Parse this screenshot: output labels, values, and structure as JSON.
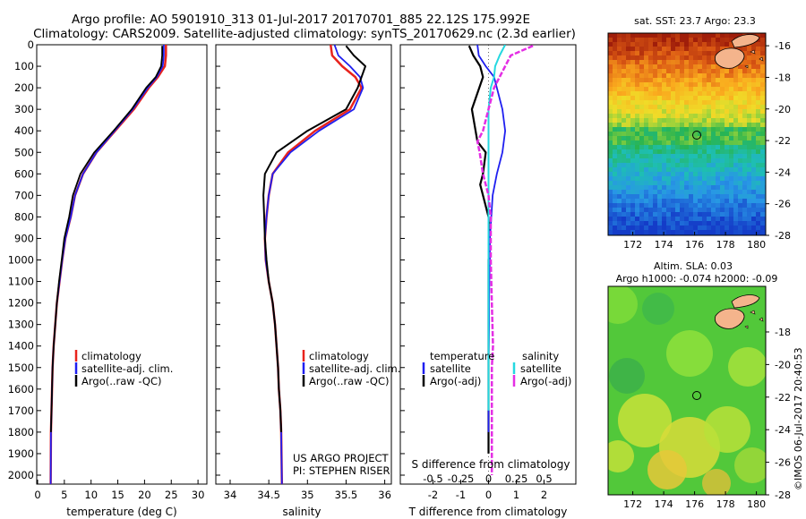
{
  "title": {
    "line1": "Argo profile: AO 5901910_313 01-Jul-2017 20170701_885 22.12S 175.992E",
    "line2": "Climatology: CARS2009. Satellite-adjusted climatology: synTS_20170629.nc (2.3d earlier)"
  },
  "depth_ticks": [
    "0",
    "100",
    "200",
    "300",
    "400",
    "500",
    "600",
    "700",
    "800",
    "900",
    "1000",
    "1100",
    "1200",
    "1300",
    "1400",
    "1500",
    "1600",
    "1700",
    "1800",
    "1900",
    "2000"
  ],
  "temperature_panel": {
    "xlabel": "temperature (deg C)",
    "xticks": [
      "0",
      "5",
      "10",
      "15",
      "20",
      "25",
      "30"
    ],
    "legend": [
      "climatology",
      "satellite-adj. clim.",
      "Argo(..raw -QC)"
    ]
  },
  "salinity_panel": {
    "xlabel": "salinity",
    "xticks": [
      "34",
      "34.5",
      "35",
      "35.5",
      "36"
    ],
    "legend": [
      "climatology",
      "satellite-adj. clim.",
      "Argo(..raw -QC)"
    ],
    "credit1": "US ARGO PROJECT",
    "credit2": "PI: STEPHEN RISER"
  },
  "difference_panel": {
    "xlabel_bottom": "T difference from climatology",
    "xlabel_top": "S difference from climatology",
    "xticks_bottom": [
      "-2",
      "-1",
      "0",
      "1",
      "2"
    ],
    "xticks_top": [
      "-0.5",
      "-0.25",
      "0",
      "0.25",
      "0.5"
    ],
    "legend_left_title": "temperature",
    "legend_right_title": "salinity",
    "legend_left": [
      "satellite",
      "Argo(-adj)"
    ],
    "legend_right": [
      "satellite",
      "Argo(-adj)"
    ]
  },
  "sst_map": {
    "title": "sat. SST: 23.7  Argo: 23.3",
    "yticks": [
      "-16",
      "-18",
      "-20",
      "-22",
      "-24",
      "-26",
      "-28"
    ],
    "xticks": [
      "172",
      "174",
      "176",
      "178",
      "180"
    ]
  },
  "sla_map": {
    "title1": "Altim. SLA: 0.03",
    "title2": "Argo h1000: -0.074  h2000: -0.09",
    "yticks": [
      "-18",
      "-20",
      "-22",
      "-24",
      "-26",
      "-28"
    ],
    "xticks": [
      "172",
      "174",
      "176",
      "178",
      "180"
    ]
  },
  "stamp": "©IMOS 06-Jul-2017 20:40:53",
  "colors": {
    "climatology": "#e8231d",
    "satellite_adj": "#1f1ff0",
    "argo": "#000000",
    "salinity_sat": "#25d8e0",
    "salinity_argo": "#e42ee4",
    "land": "#f4b48c"
  },
  "chart_data": [
    {
      "type": "line",
      "title": "",
      "xlabel": "temperature (deg C)",
      "ylabel": "",
      "xlim": [
        -2,
        32
      ],
      "ylim": [
        2060,
        0
      ],
      "y_inverted": true,
      "series": [
        {
          "name": "climatology",
          "x": [
            24.0,
            24.0,
            23.8,
            22.5,
            20.8,
            18.0,
            14.5,
            11.0,
            8.5,
            7.0,
            6.2,
            5.2,
            4.6,
            4.1,
            3.6,
            3.3,
            3.0,
            2.8,
            2.7,
            2.6,
            2.5,
            2.45
          ],
          "y": [
            0,
            50,
            100,
            150,
            200,
            300,
            400,
            500,
            600,
            700,
            800,
            900,
            1000,
            1100,
            1200,
            1300,
            1400,
            1500,
            1600,
            1700,
            1800,
            2050
          ]
        },
        {
          "name": "satellite-adj. clim.",
          "x": [
            23.6,
            23.6,
            23.4,
            22.3,
            20.6,
            17.8,
            14.4,
            11.0,
            8.5,
            7.0,
            6.2,
            5.2,
            4.6,
            4.1,
            3.6,
            3.3,
            3.0,
            2.8,
            2.7,
            2.6,
            2.5,
            2.45
          ],
          "y": [
            0,
            50,
            100,
            150,
            200,
            300,
            400,
            500,
            600,
            700,
            800,
            900,
            1000,
            1100,
            1200,
            1300,
            1400,
            1500,
            1600,
            1700,
            1800,
            2050
          ]
        },
        {
          "name": "Argo(..raw -QC)",
          "x": [
            23.3,
            23.3,
            23.1,
            22.1,
            20.3,
            17.6,
            14.2,
            10.6,
            8.0,
            6.6,
            5.9,
            5.0,
            4.5,
            4.0,
            3.6,
            3.3,
            3.0,
            2.8,
            2.7,
            2.6,
            2.5
          ],
          "y": [
            5,
            50,
            100,
            150,
            200,
            300,
            400,
            500,
            600,
            700,
            800,
            900,
            1000,
            1100,
            1200,
            1300,
            1400,
            1500,
            1600,
            1700,
            1800
          ]
        }
      ]
    },
    {
      "type": "line",
      "title": "",
      "xlabel": "salinity",
      "ylabel": "",
      "xlim": [
        33.82,
        36.1
      ],
      "ylim": [
        2060,
        0
      ],
      "y_inverted": true,
      "series": [
        {
          "name": "climatology",
          "x": [
            35.3,
            35.32,
            35.45,
            35.62,
            35.7,
            35.55,
            35.1,
            34.75,
            34.55,
            34.5,
            34.47,
            34.45,
            34.46,
            34.5,
            34.55,
            34.58,
            34.6,
            34.62,
            34.63,
            34.65,
            34.66,
            34.67
          ],
          "y": [
            0,
            50,
            100,
            150,
            200,
            300,
            400,
            500,
            600,
            700,
            800,
            900,
            1000,
            1100,
            1200,
            1300,
            1400,
            1500,
            1600,
            1700,
            1800,
            2050
          ]
        },
        {
          "name": "satellite-adj. clim.",
          "x": [
            35.35,
            35.4,
            35.55,
            35.68,
            35.72,
            35.6,
            35.15,
            34.78,
            34.55,
            34.5,
            34.47,
            34.45,
            34.46,
            34.5,
            34.55,
            34.58,
            34.6,
            34.62,
            34.63,
            34.65,
            34.66,
            34.67
          ],
          "y": [
            0,
            50,
            100,
            150,
            200,
            300,
            400,
            500,
            600,
            700,
            800,
            900,
            1000,
            1100,
            1200,
            1300,
            1400,
            1500,
            1600,
            1700,
            1800,
            2050
          ]
        },
        {
          "name": "Argo(..raw -QC)",
          "x": [
            35.5,
            35.6,
            35.75,
            35.7,
            35.65,
            35.5,
            35.0,
            34.6,
            34.45,
            34.43,
            34.44,
            34.45,
            34.47,
            34.5,
            34.55,
            34.58,
            34.6,
            34.62,
            34.63,
            34.65,
            34.66
          ],
          "y": [
            5,
            50,
            100,
            150,
            200,
            300,
            400,
            500,
            600,
            700,
            800,
            900,
            1000,
            1100,
            1200,
            1300,
            1400,
            1500,
            1600,
            1700,
            1800
          ]
        }
      ]
    },
    {
      "type": "line",
      "title": "",
      "xlabel": "T difference from climatology",
      "ylabel": "",
      "xlim": [
        -2.5,
        2.5
      ],
      "ylim": [
        2060,
        0
      ],
      "y_inverted": true,
      "series": [
        {
          "name": "temperature satellite",
          "x": [
            -0.4,
            -0.35,
            -0.1,
            0.2,
            0.3,
            0.5,
            0.6,
            0.5,
            0.3,
            0.15,
            0.1,
            0.05,
            0.05,
            0.03,
            0.02,
            0.02,
            0.01,
            0.0,
            0.0,
            0.0,
            0.0
          ],
          "y": [
            0,
            50,
            100,
            150,
            200,
            300,
            400,
            500,
            600,
            700,
            800,
            900,
            1000,
            1100,
            1200,
            1300,
            1400,
            1500,
            1600,
            1700,
            1800
          ]
        },
        {
          "name": "temperature Argo(-adj)",
          "x": [
            -0.7,
            -0.55,
            -0.3,
            -0.2,
            -0.6,
            -0.4,
            -0.1,
            -0.2,
            -0.3,
            -0.2,
            0.0,
            0.05,
            0.0,
            0.0,
            0.0,
            0.0,
            0.0,
            0.0,
            0.0,
            0.0,
            0.0,
            0.0
          ],
          "y": [
            5,
            50,
            100,
            150,
            300,
            450,
            500,
            600,
            650,
            700,
            800,
            900,
            1000,
            1100,
            1200,
            1300,
            1400,
            1500,
            1600,
            1700,
            1800,
            1900
          ]
        },
        {
          "name": "salinity satellite",
          "x": [
            0.15,
            0.1,
            0.06,
            0.05,
            0.02,
            0.0,
            0.0,
            0.0,
            0.0,
            0.0,
            0.0,
            0.0,
            0.0,
            0.0,
            0.0,
            0.0,
            0.0,
            0.0,
            0.0,
            0.0
          ],
          "y": [
            0,
            50,
            100,
            150,
            200,
            300,
            400,
            500,
            600,
            700,
            800,
            900,
            1000,
            1100,
            1200,
            1300,
            1400,
            1500,
            1600,
            1700
          ],
          "x_units": "S difference"
        },
        {
          "name": "salinity Argo(-adj)",
          "x": [
            0.4,
            0.2,
            0.15,
            0.05,
            0.0,
            -0.05,
            -0.1,
            -0.08,
            -0.05,
            0.0,
            0.02,
            0.02,
            0.03,
            0.04,
            0.03,
            0.03,
            0.03,
            0.03,
            0.03,
            0.03
          ],
          "y": [
            5,
            50,
            100,
            200,
            300,
            400,
            450,
            500,
            600,
            700,
            800,
            1000,
            1200,
            1400,
            1500,
            1600,
            1700,
            1800,
            1900,
            2000
          ],
          "x_units": "S difference"
        }
      ]
    },
    {
      "type": "heatmap",
      "title": "sat. SST: 23.7  Argo: 23.3",
      "xlim": [
        170.4,
        180.6
      ],
      "ylim": [
        -28,
        -15.2
      ]
    },
    {
      "type": "heatmap",
      "title": "Altim. SLA: 0.03",
      "xlim": [
        170.4,
        180.6
      ],
      "ylim": [
        -28,
        -15.2
      ]
    }
  ]
}
